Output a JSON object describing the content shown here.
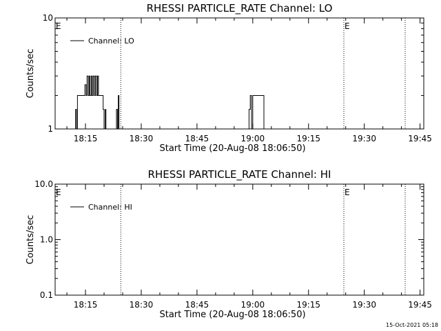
{
  "chart_data": [
    {
      "type": "line",
      "title": "RHESSI PARTICLE_RATE Channel: LO",
      "xlabel": "Start Time (20-Aug-08 18:06:50)",
      "ylabel": "Counts/sec",
      "y_scale": "log",
      "ylim": [
        1,
        10
      ],
      "xlim": [
        "18:06:50",
        "19:46:00"
      ],
      "x_tick_labels": [
        "18:15",
        "18:30",
        "18:45",
        "19:00",
        "19:15",
        "19:30",
        "19:45"
      ],
      "y_tick_labels": [
        "1",
        "10"
      ],
      "legend": {
        "entries": [
          "Channel: LO"
        ],
        "placement": "top-left"
      },
      "grid": false,
      "event_markers": [
        {
          "time": "18:06:50",
          "label": "E"
        },
        {
          "time": "18:24:30",
          "label": ""
        },
        {
          "time": "19:24:30",
          "label": "E"
        },
        {
          "time": "19:41:00",
          "label": ""
        }
      ],
      "series": [
        {
          "name": "Channel: LO",
          "x": [
            "18:12:20",
            "18:12:20",
            "18:12:35",
            "18:12:35",
            "18:12:50",
            "18:12:50",
            "18:13:00",
            "18:13:00",
            "18:14:50",
            "18:14:50",
            "18:15:10",
            "18:15:10",
            "18:15:25",
            "18:15:25",
            "18:15:45",
            "18:15:45",
            "18:16:00",
            "18:16:00",
            "18:16:15",
            "18:16:15",
            "18:16:35",
            "18:16:35",
            "18:16:50",
            "18:16:50",
            "18:17:05",
            "18:17:05",
            "18:17:25",
            "18:17:25",
            "18:17:40",
            "18:17:40",
            "18:18:00",
            "18:18:00",
            "18:18:15",
            "18:18:15",
            "18:18:30",
            "18:18:30",
            "18:19:45",
            "18:19:45",
            "18:20:00",
            "18:20:00",
            "18:20:20",
            "18:20:20",
            "18:20:30",
            "18:20:30",
            "18:20:50",
            "18:20:50",
            "18:23:20",
            "18:23:20",
            "18:23:35",
            "18:23:35",
            "18:23:50",
            "18:23:50",
            "18:24:00",
            "18:24:00",
            "18:24:20",
            "18:24:20",
            "18:59:00",
            "18:59:00",
            "18:59:20",
            "18:59:20",
            "18:59:40",
            "18:59:40",
            "19:00:00",
            "19:00:00",
            "19:00:40",
            "19:00:40",
            "19:03:00",
            "19:03:00",
            "19:03:20"
          ],
          "y": [
            1,
            1.5,
            1.5,
            1,
            1,
            2,
            2,
            2,
            2,
            2.5,
            2.5,
            2,
            2,
            3,
            3,
            2,
            2,
            3,
            3,
            2,
            2,
            3,
            3,
            2,
            2,
            3,
            3,
            2,
            2,
            3,
            3,
            2,
            2,
            3,
            3,
            2,
            2,
            1.5,
            1.5,
            1,
            1,
            1.5,
            1.5,
            1,
            1,
            1,
            1,
            1.5,
            1.5,
            1,
            1,
            2,
            2,
            1,
            1,
            1,
            1,
            1.5,
            1.5,
            2,
            2,
            1,
            1,
            2,
            2,
            2,
            2,
            1,
            1
          ]
        }
      ]
    },
    {
      "type": "line",
      "title": "RHESSI PARTICLE_RATE Channel: HI",
      "xlabel": "Start Time (20-Aug-08 18:06:50)",
      "ylabel": "Counts/sec",
      "y_scale": "log",
      "ylim": [
        0.1,
        10
      ],
      "xlim": [
        "18:06:50",
        "19:46:00"
      ],
      "x_tick_labels": [
        "18:15",
        "18:30",
        "18:45",
        "19:00",
        "19:15",
        "19:30",
        "19:45"
      ],
      "y_tick_labels": [
        "0.1",
        "1.0",
        "10.0"
      ],
      "legend": {
        "entries": [
          "Channel: HI"
        ],
        "placement": "top-left"
      },
      "grid": false,
      "event_markers": [
        {
          "time": "18:06:50",
          "label": "E"
        },
        {
          "time": "18:24:30",
          "label": ""
        },
        {
          "time": "19:24:30",
          "label": "E"
        },
        {
          "time": "19:41:00",
          "label": ""
        }
      ],
      "series": [
        {
          "name": "Channel: HI",
          "x": [],
          "y": []
        }
      ]
    }
  ],
  "footer": {
    "timestamp": "15-Oct-2021 05:18"
  }
}
